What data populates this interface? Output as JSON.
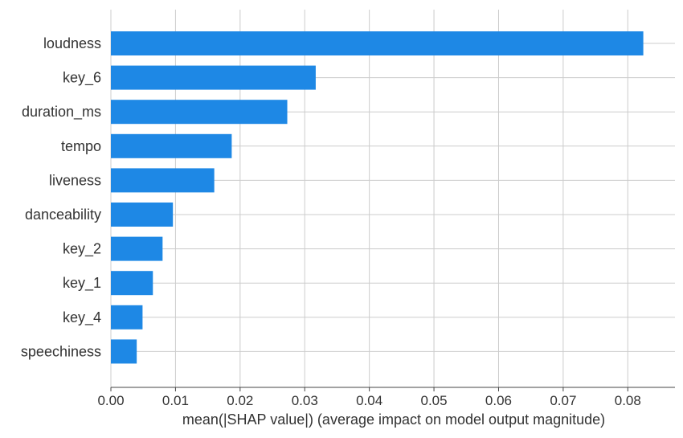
{
  "chart_data": {
    "type": "bar",
    "orientation": "horizontal",
    "categories": [
      "loudness",
      "key_6",
      "duration_ms",
      "tempo",
      "liveness",
      "danceability",
      "key_2",
      "key_1",
      "key_4",
      "speechiness"
    ],
    "values": [
      0.0824,
      0.0317,
      0.0273,
      0.0187,
      0.016,
      0.0096,
      0.008,
      0.0065,
      0.0049,
      0.004
    ],
    "xlabel": "mean(|SHAP value|) (average impact on model output magnitude)",
    "ylabel": "",
    "xlim": [
      0,
      0.0873
    ],
    "xticks": [
      "0.00",
      "0.01",
      "0.02",
      "0.03",
      "0.04",
      "0.05",
      "0.06",
      "0.07",
      "0.08"
    ],
    "grid": true,
    "bar_color": "#1e88e5"
  }
}
